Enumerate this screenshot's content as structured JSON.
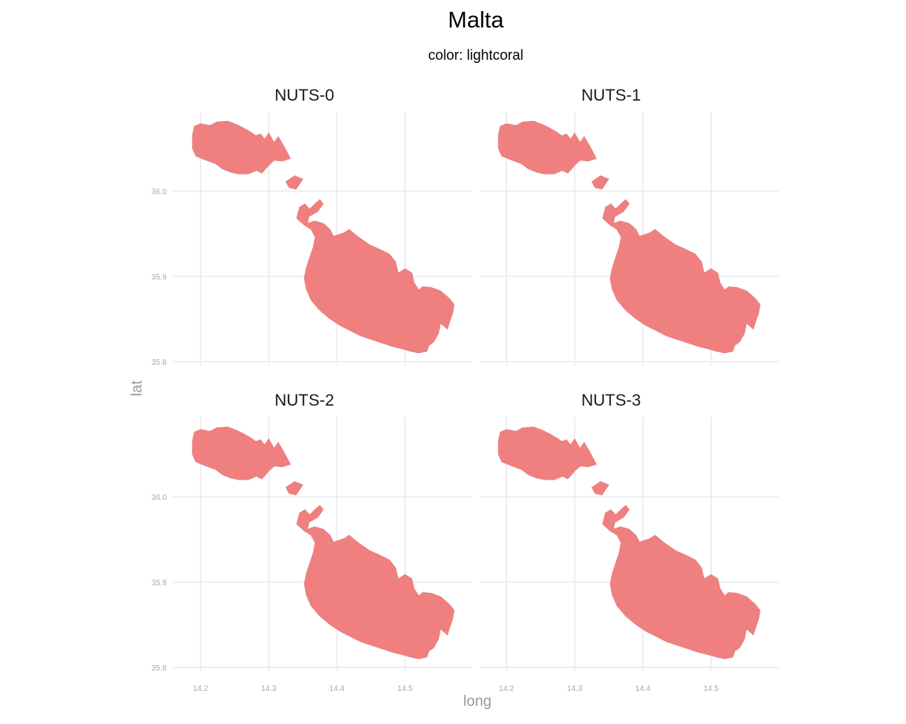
{
  "chart_data": {
    "type": "map",
    "title": "Malta",
    "subtitle": "color: lightcoral",
    "xlabel": "long",
    "ylabel": "lat",
    "fill_color": "#F08080",
    "grid": true,
    "xlim": [
      14.18,
      14.6
    ],
    "ylim": [
      35.79,
      36.1
    ],
    "x_ticks": [
      14.2,
      14.3,
      14.4,
      14.5
    ],
    "x_tick_labels": [
      "14.2",
      "14.3",
      "14.4",
      "14.5"
    ],
    "y_ticks": [
      35.8,
      35.9,
      36.0
    ],
    "y_tick_labels": [
      "35.8",
      "35.9",
      "36.0"
    ],
    "panels": [
      {
        "label": "NUTS-0"
      },
      {
        "label": "NUTS-1"
      },
      {
        "label": "NUTS-2"
      },
      {
        "label": "NUTS-3"
      }
    ],
    "shapes": {
      "gozo": [
        [
          14.188,
          36.066
        ],
        [
          14.191,
          36.076
        ],
        [
          14.2,
          36.079
        ],
        [
          14.214,
          36.077
        ],
        [
          14.224,
          36.081
        ],
        [
          14.24,
          36.082
        ],
        [
          14.253,
          36.078
        ],
        [
          14.263,
          36.074
        ],
        [
          14.274,
          36.069
        ],
        [
          14.281,
          36.065
        ],
        [
          14.288,
          36.067
        ],
        [
          14.294,
          36.061
        ],
        [
          14.3,
          36.068
        ],
        [
          14.308,
          36.057
        ],
        [
          14.314,
          36.064
        ],
        [
          14.322,
          36.053
        ],
        [
          14.332,
          36.038
        ],
        [
          14.32,
          36.035
        ],
        [
          14.308,
          36.036
        ],
        [
          14.3,
          36.03
        ],
        [
          14.29,
          36.021
        ],
        [
          14.282,
          36.024
        ],
        [
          14.27,
          36.02
        ],
        [
          14.256,
          36.02
        ],
        [
          14.244,
          36.022
        ],
        [
          14.232,
          36.026
        ],
        [
          14.222,
          36.032
        ],
        [
          14.208,
          36.036
        ],
        [
          14.193,
          36.041
        ],
        [
          14.188,
          36.05
        ]
      ],
      "comino": [
        [
          14.325,
          36.011
        ],
        [
          14.338,
          36.018
        ],
        [
          14.35,
          36.014
        ],
        [
          14.34,
          36.002
        ],
        [
          14.33,
          36.004
        ]
      ],
      "malta": [
        [
          14.341,
          35.968
        ],
        [
          14.345,
          35.981
        ],
        [
          14.353,
          35.985
        ],
        [
          14.36,
          35.979
        ],
        [
          14.369,
          35.986
        ],
        [
          14.375,
          35.99
        ],
        [
          14.38,
          35.985
        ],
        [
          14.372,
          35.976
        ],
        [
          14.359,
          35.97
        ],
        [
          14.357,
          35.962
        ],
        [
          14.367,
          35.965
        ],
        [
          14.38,
          35.962
        ],
        [
          14.39,
          35.955
        ],
        [
          14.395,
          35.947
        ],
        [
          14.41,
          35.951
        ],
        [
          14.418,
          35.955
        ],
        [
          14.43,
          35.947
        ],
        [
          14.448,
          35.937
        ],
        [
          14.462,
          35.932
        ],
        [
          14.477,
          35.926
        ],
        [
          14.486,
          35.917
        ],
        [
          14.49,
          35.904
        ],
        [
          14.5,
          35.909
        ],
        [
          14.51,
          35.904
        ],
        [
          14.513,
          35.893
        ],
        [
          14.52,
          35.884
        ],
        [
          14.526,
          35.888
        ],
        [
          14.538,
          35.887
        ],
        [
          14.552,
          35.883
        ],
        [
          14.565,
          35.874
        ],
        [
          14.572,
          35.867
        ],
        [
          14.57,
          35.857
        ],
        [
          14.566,
          35.848
        ],
        [
          14.562,
          35.838
        ],
        [
          14.552,
          35.845
        ],
        [
          14.549,
          35.833
        ],
        [
          14.542,
          35.823
        ],
        [
          14.535,
          35.819
        ],
        [
          14.532,
          35.812
        ],
        [
          14.52,
          35.81
        ],
        [
          14.508,
          35.812
        ],
        [
          14.495,
          35.815
        ],
        [
          14.48,
          35.818
        ],
        [
          14.465,
          35.822
        ],
        [
          14.45,
          35.826
        ],
        [
          14.435,
          35.83
        ],
        [
          14.42,
          35.836
        ],
        [
          14.405,
          35.842
        ],
        [
          14.39,
          35.85
        ],
        [
          14.375,
          35.86
        ],
        [
          14.362,
          35.872
        ],
        [
          14.355,
          35.885
        ],
        [
          14.352,
          35.898
        ],
        [
          14.355,
          35.91
        ],
        [
          14.36,
          35.922
        ],
        [
          14.365,
          35.934
        ],
        [
          14.368,
          35.946
        ],
        [
          14.362,
          35.955
        ],
        [
          14.352,
          35.96
        ]
      ]
    }
  }
}
